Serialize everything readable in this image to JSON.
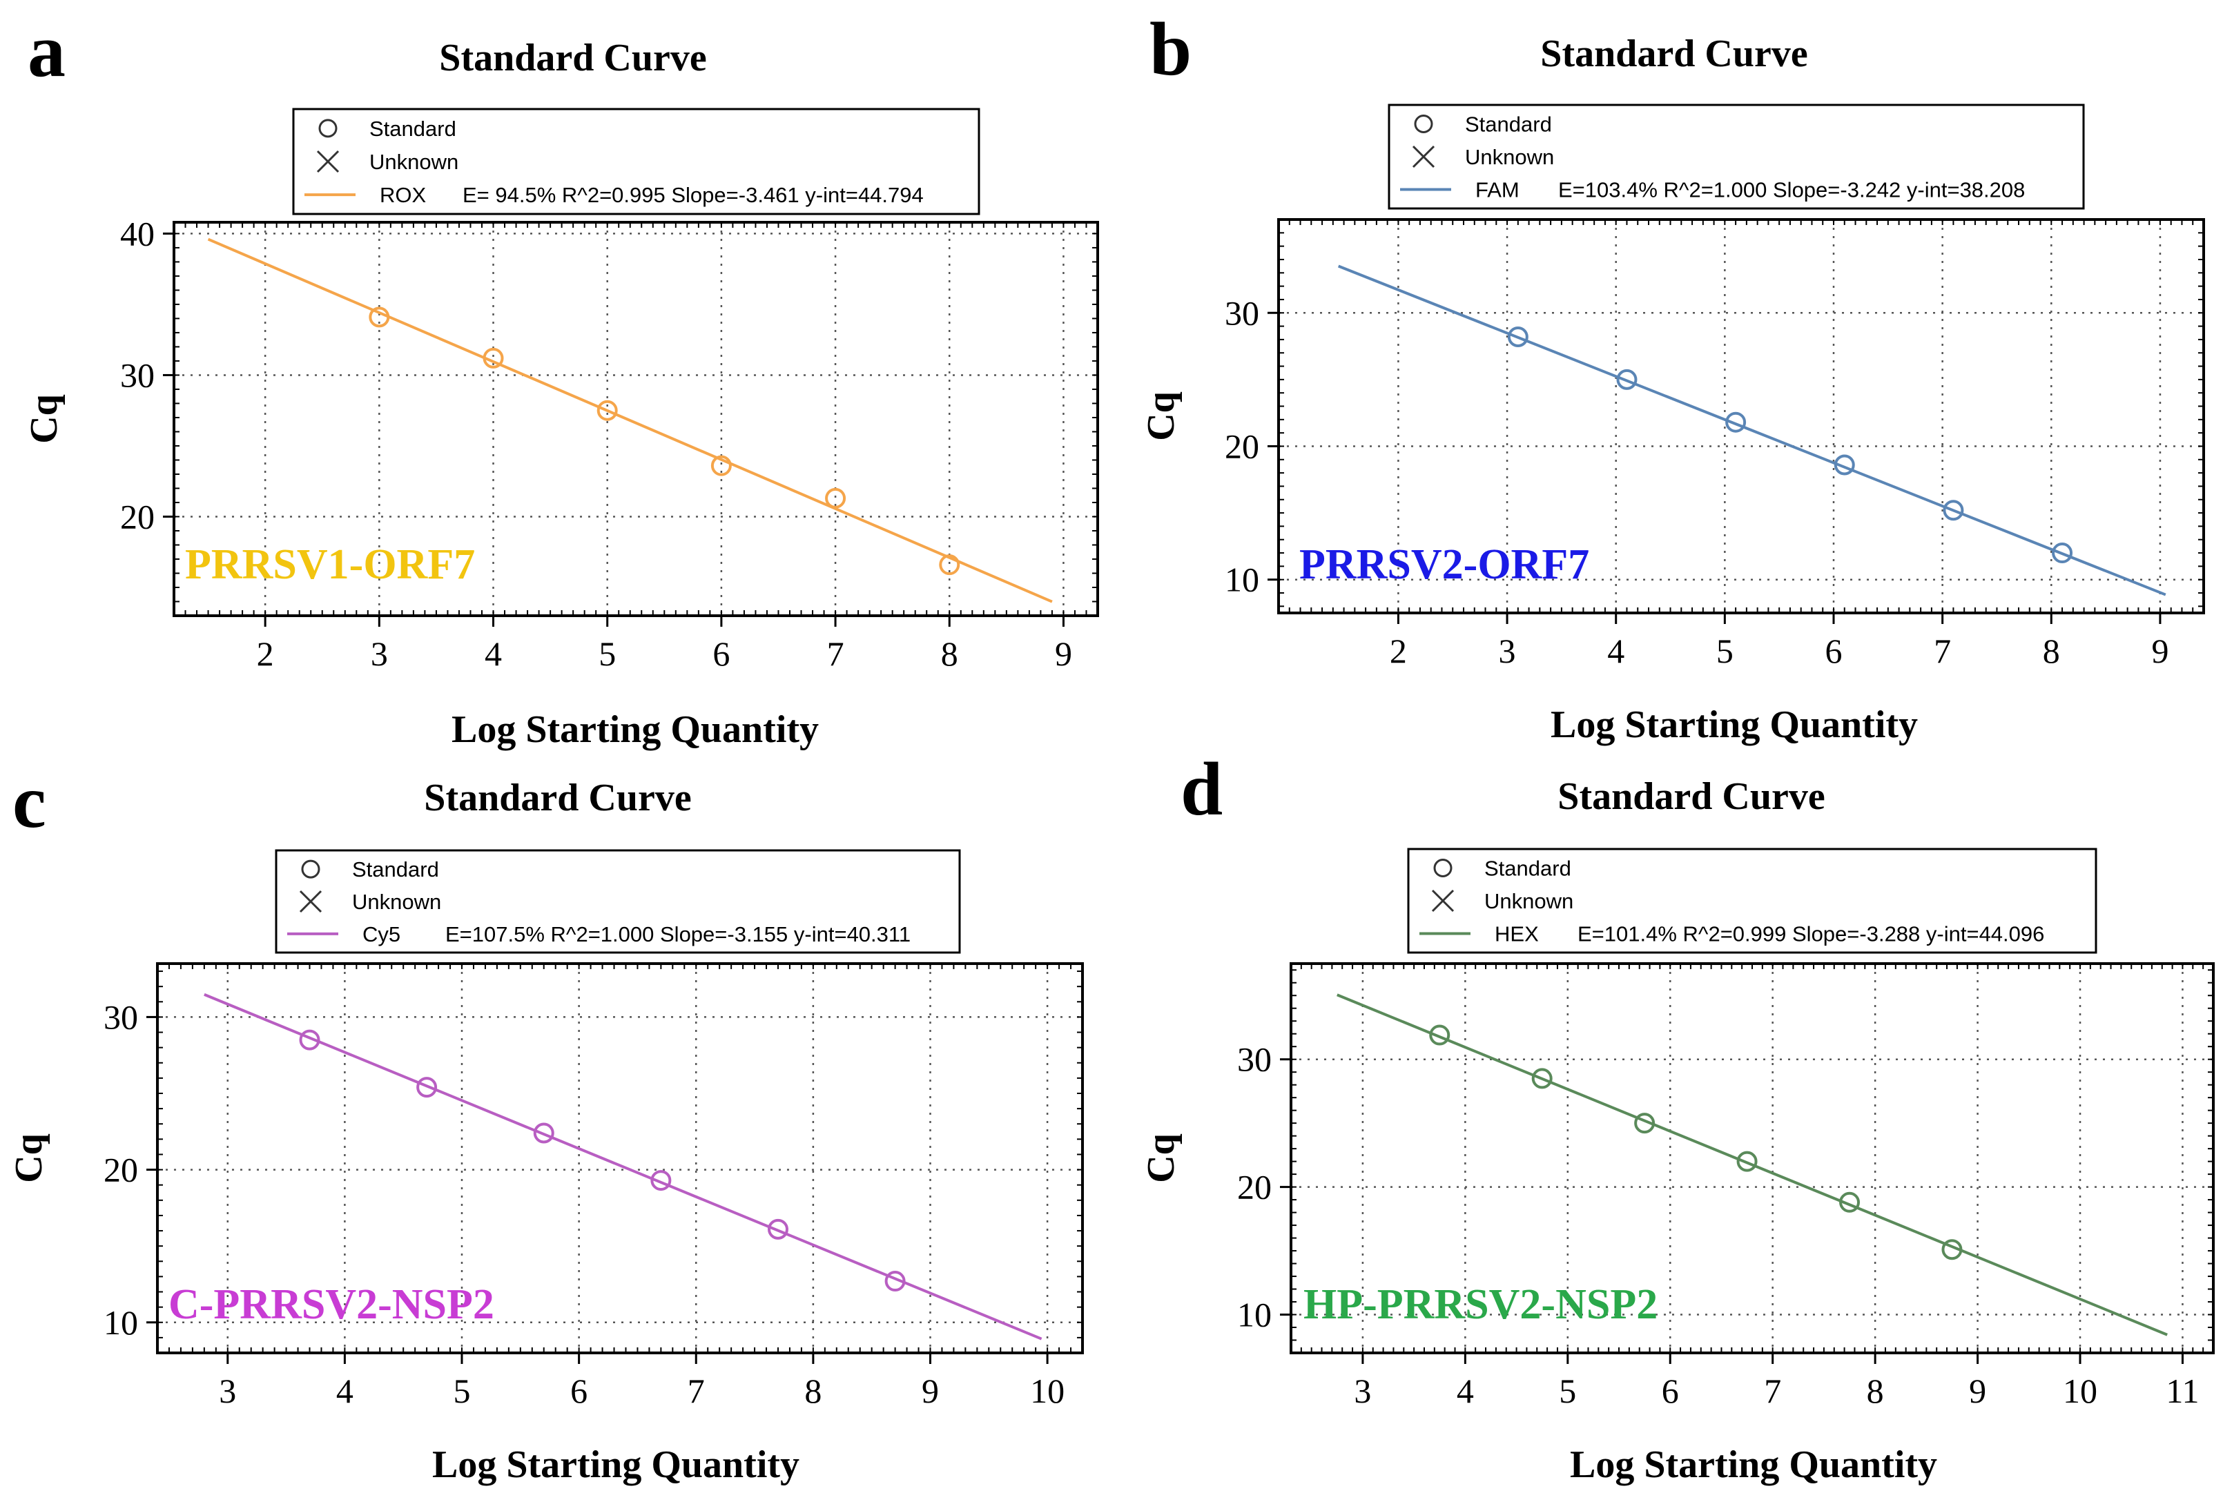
{
  "chart_data": [
    {
      "panel": "a",
      "type": "scatter",
      "title": "Standard Curve",
      "xlabel": "Log Starting Quantity",
      "ylabel": "Cq",
      "xlim": [
        1.2,
        9.3
      ],
      "ylim": [
        13,
        40.8
      ],
      "xticks": [
        2,
        3,
        4,
        5,
        6,
        7,
        8,
        9
      ],
      "yticks": [
        20,
        30,
        40
      ],
      "grid": true,
      "legend_position": "top-center",
      "legend": {
        "standard_label": "Standard",
        "unknown_label": "Unknown",
        "fluor": "ROX",
        "stats": "E= 94.5% R^2=0.995 Slope=-3.461 y-int=44.794"
      },
      "target_label": "PRRSV1-ORF7",
      "target_color": "#f2c40f",
      "series_color": "#f5a54a",
      "fit": {
        "slope": -3.461,
        "intercept": 44.794,
        "x_range": [
          1.5,
          8.9
        ]
      },
      "series": [
        {
          "name": "Standard",
          "x": [
            3,
            4,
            5,
            6,
            7,
            8
          ],
          "y": [
            34.1,
            31.2,
            27.5,
            23.6,
            21.3,
            16.6
          ]
        }
      ]
    },
    {
      "panel": "b",
      "type": "scatter",
      "title": "Standard Curve",
      "xlabel": "Log Starting Quantity",
      "ylabel": "Cq",
      "xlim": [
        0.9,
        9.4
      ],
      "ylim": [
        7.5,
        37
      ],
      "xticks": [
        2,
        3,
        4,
        5,
        6,
        7,
        8,
        9
      ],
      "yticks": [
        10,
        20,
        30
      ],
      "grid": true,
      "legend_position": "top-center",
      "legend": {
        "standard_label": "Standard",
        "unknown_label": "Unknown",
        "fluor": "FAM",
        "stats": "E=103.4% R^2=1.000 Slope=-3.242 y-int=38.208"
      },
      "target_label": "PRRSV2-ORF7",
      "target_color": "#1a1ae6",
      "series_color": "#5a85b5",
      "fit": {
        "slope": -3.242,
        "intercept": 38.208,
        "x_range": [
          1.45,
          9.05
        ]
      },
      "series": [
        {
          "name": "Standard",
          "x": [
            3.1,
            4.1,
            5.1,
            6.1,
            7.1,
            8.1
          ],
          "y": [
            28.2,
            25.0,
            21.8,
            18.6,
            15.2,
            12.0
          ]
        }
      ]
    },
    {
      "panel": "c",
      "type": "scatter",
      "title": "Standard Curve",
      "xlabel": "Log Starting Quantity",
      "ylabel": "Cq",
      "xlim": [
        2.4,
        10.3
      ],
      "ylim": [
        8,
        33.5
      ],
      "xticks": [
        3,
        4,
        5,
        6,
        7,
        8,
        9,
        10
      ],
      "yticks": [
        10,
        20,
        30
      ],
      "grid": true,
      "legend_position": "top-center",
      "legend": {
        "standard_label": "Standard",
        "unknown_label": "Unknown",
        "fluor": "Cy5",
        "stats": "E=107.5% R^2=1.000 Slope=-3.155 y-int=40.311"
      },
      "target_label": "C-PRRSV2-NSP2",
      "target_color": "#c83cd4",
      "series_color": "#b85ec2",
      "fit": {
        "slope": -3.155,
        "intercept": 40.311,
        "x_range": [
          2.8,
          9.95
        ]
      },
      "series": [
        {
          "name": "Standard",
          "x": [
            3.7,
            4.7,
            5.7,
            6.7,
            7.7,
            8.7
          ],
          "y": [
            28.5,
            25.4,
            22.4,
            19.3,
            16.1,
            12.7
          ]
        }
      ]
    },
    {
      "panel": "d",
      "type": "scatter",
      "title": "Standard Curve",
      "xlabel": "Log Starting Quantity",
      "ylabel": "Cq",
      "xlim": [
        2.3,
        11.3
      ],
      "ylim": [
        7,
        37.5
      ],
      "xticks": [
        3,
        4,
        5,
        6,
        7,
        8,
        9,
        10,
        11
      ],
      "yticks": [
        10,
        20,
        30
      ],
      "grid": true,
      "legend_position": "top-center",
      "legend": {
        "standard_label": "Standard",
        "unknown_label": "Unknown",
        "fluor": "HEX",
        "stats": "E=101.4% R^2=0.999 Slope=-3.288 y-int=44.096"
      },
      "target_label": "HP-PRRSV2-NSP2",
      "target_color": "#2aa84a",
      "series_color": "#5a8a5a",
      "fit": {
        "slope": -3.288,
        "intercept": 44.096,
        "x_range": [
          2.75,
          10.85
        ]
      },
      "series": [
        {
          "name": "Standard",
          "x": [
            3.75,
            4.75,
            5.75,
            6.75,
            7.75,
            8.75
          ],
          "y": [
            31.9,
            28.5,
            25.0,
            22.0,
            18.8,
            15.1
          ]
        }
      ]
    }
  ]
}
